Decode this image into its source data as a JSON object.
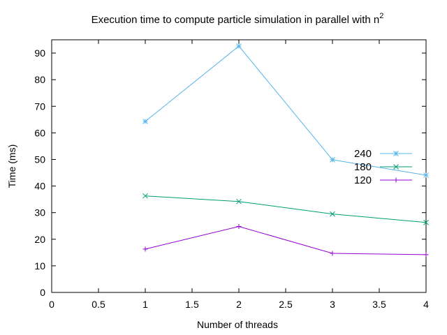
{
  "chart_data": {
    "type": "line",
    "title": "Execution time to compute particle simulation in parallel with n",
    "title_superscript": "2",
    "xlabel": "Number of threads",
    "ylabel": "Time (ms)",
    "xlim": [
      0,
      4
    ],
    "ylim": [
      0,
      95
    ],
    "xticks": [
      "0",
      "0.5",
      "1",
      "1.5",
      "2",
      "2.5",
      "3",
      "3.5",
      "4"
    ],
    "yticks": [
      "0",
      "10",
      "20",
      "30",
      "40",
      "50",
      "60",
      "70",
      "80",
      "90"
    ],
    "grid": false,
    "legend_position": "right",
    "series": [
      {
        "name": "240",
        "color": "#56b4e9",
        "marker": "star",
        "x": [
          1,
          2,
          3,
          4
        ],
        "y": [
          64.3,
          92.6,
          49.9,
          44.1
        ]
      },
      {
        "name": "180",
        "color": "#009e73",
        "marker": "x",
        "x": [
          1,
          2,
          3,
          4
        ],
        "y": [
          36.3,
          34.2,
          29.5,
          26.3
        ]
      },
      {
        "name": "120",
        "color": "#9400d3",
        "marker": "plus",
        "x": [
          1,
          2,
          3,
          4
        ],
        "y": [
          16.3,
          24.8,
          14.7,
          14.2
        ]
      }
    ]
  }
}
